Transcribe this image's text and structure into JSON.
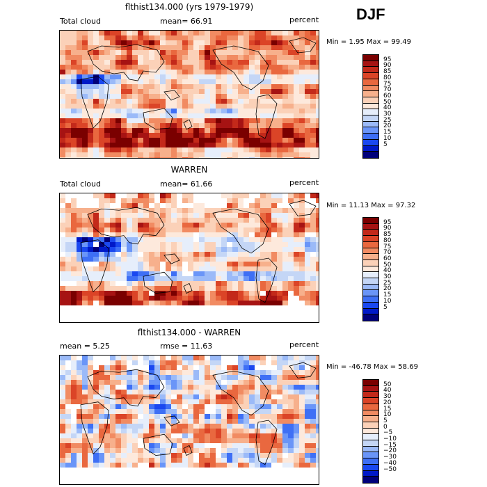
{
  "season": "DJF",
  "colors": {
    "abs": [
      "#00007a",
      "#0019c8",
      "#1a48f0",
      "#3e6ff5",
      "#6a95f8",
      "#9bbaf8",
      "#c4d6f6",
      "#e6eefb",
      "#fde9dc",
      "#fbd1b8",
      "#f7b08c",
      "#f18b62",
      "#e9683f",
      "#db4427",
      "#c3291a",
      "#a61313",
      "#7a0000"
    ],
    "diff": [
      "#00007a",
      "#0019c8",
      "#1a48f0",
      "#3e6ff5",
      "#6a95f8",
      "#9bbaf8",
      "#c4d6f6",
      "#e6eefb",
      "#fde9dc",
      "#fbd1b8",
      "#f7b08c",
      "#f18b62",
      "#e9683f",
      "#db4427",
      "#c3291a",
      "#a61313",
      "#7a0000"
    ],
    "missing": "#ffffff",
    "coast": "#000000"
  },
  "panels": [
    {
      "title": "flthist134.000 (yrs 1979-1979)",
      "left_label": "Total cloud",
      "center_label": "mean=  66.91",
      "right_label": "percent",
      "stats": "Min =   1.95 Max =  99.49",
      "colorbar_labels": [
        "95",
        "90",
        "85",
        "80",
        "75",
        "70",
        "60",
        "50",
        "40",
        "30",
        "25",
        "20",
        "15",
        "10",
        "5"
      ],
      "mean_value": 66.91,
      "missing_fraction": 0.0
    },
    {
      "title": "WARREN",
      "left_label": "Total cloud",
      "center_label": "mean=  61.66",
      "right_label": "percent",
      "stats": "Min =  11.13 Max =  97.32",
      "colorbar_labels": [
        "95",
        "90",
        "85",
        "80",
        "75",
        "70",
        "60",
        "50",
        "40",
        "30",
        "25",
        "20",
        "15",
        "10",
        "5"
      ],
      "mean_value": 61.66,
      "missing_fraction": 0.12
    },
    {
      "title": "flthist134.000 - WARREN",
      "left_label": "mean =   5.25",
      "center_label": "rmse =  11.63",
      "right_label": "percent",
      "stats": "Min = -46.78 Max =  58.69",
      "colorbar_labels": [
        "50",
        "40",
        "30",
        "20",
        "15",
        "10",
        "5",
        "0",
        "−5",
        "−10",
        "−15",
        "−20",
        "−30",
        "−40",
        "−50"
      ],
      "mean_value": 5.25,
      "missing_fraction": 0.12
    }
  ]
}
